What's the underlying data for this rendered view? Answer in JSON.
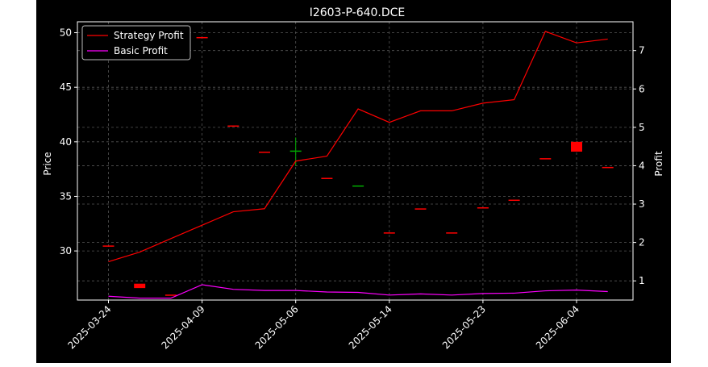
{
  "chart_data": {
    "type": "line",
    "title": "I2603-P-640.DCE",
    "ylabel": "Price",
    "y2label": "Profit",
    "xlabel": "",
    "grid": true,
    "legend_position": "top-left",
    "x_tick_labels": [
      "2025-03-24",
      "2025-04-09",
      "2025-05-06",
      "2025-05-14",
      "2025-05-23",
      "2025-06-04"
    ],
    "ylim": [
      25.5,
      51.0
    ],
    "y_ticks": [
      30,
      35,
      40,
      45,
      50
    ],
    "y2lim": [
      0.5,
      7.75
    ],
    "y2_ticks": [
      1,
      2,
      3,
      4,
      5,
      6,
      7
    ],
    "candles": [
      {
        "open": 30.5,
        "close": 30.5,
        "color": "#ff0000"
      },
      {
        "open": 27.0,
        "close": 26.6,
        "color": "#ff0000"
      },
      {
        "open": 26.0,
        "close": 26.0,
        "color": "#ff0000"
      },
      {
        "open": 49.6,
        "close": 49.6,
        "color": "#ff0000"
      },
      {
        "open": 41.5,
        "close": 41.5,
        "color": "#ff0000"
      },
      {
        "open": 39.1,
        "close": 39.1,
        "color": "#ff0000"
      },
      {
        "open": 39.2,
        "close": 39.2,
        "high": 40.4,
        "low": 37.8,
        "color": "#00aa00"
      },
      {
        "open": 36.7,
        "close": 36.7,
        "color": "#ff0000"
      },
      {
        "open": 36.0,
        "close": 36.0,
        "color": "#00aa00"
      },
      {
        "open": 31.7,
        "close": 31.7,
        "color": "#ff0000"
      },
      {
        "open": 33.9,
        "close": 33.9,
        "color": "#ff0000"
      },
      {
        "open": 31.7,
        "close": 31.7,
        "color": "#ff0000"
      },
      {
        "open": 34.0,
        "close": 34.0,
        "color": "#ff0000"
      },
      {
        "open": 34.7,
        "close": 34.7,
        "color": "#ff0000"
      },
      {
        "open": 38.5,
        "close": 38.5,
        "color": "#ff0000"
      },
      {
        "open": 40.0,
        "close": 39.1,
        "color": "#ff0000"
      },
      {
        "open": 37.7,
        "close": 37.7,
        "color": "#ff0000"
      }
    ],
    "series": [
      {
        "name": "Strategy Profit",
        "color": "#ff0000",
        "axis": "right",
        "values": [
          1.5,
          1.75,
          2.1,
          2.45,
          2.8,
          2.88,
          4.12,
          4.25,
          5.48,
          5.13,
          5.43,
          5.43,
          5.63,
          5.72,
          7.5,
          7.2,
          7.3
        ]
      },
      {
        "name": "Basic Profit",
        "color": "#ff00ff",
        "axis": "right",
        "values": [
          0.6,
          0.55,
          0.55,
          0.9,
          0.78,
          0.75,
          0.75,
          0.71,
          0.7,
          0.63,
          0.66,
          0.63,
          0.67,
          0.68,
          0.74,
          0.76,
          0.72
        ]
      }
    ]
  }
}
